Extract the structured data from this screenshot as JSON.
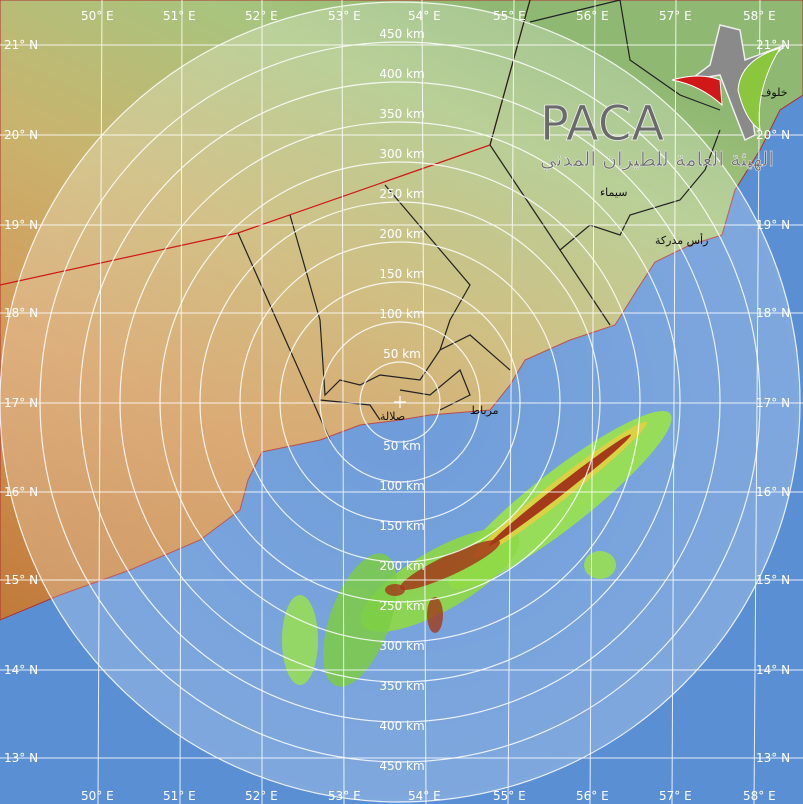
{
  "map": {
    "type": "weather radar composite",
    "radar_center": {
      "lat": 17.0,
      "lon": 54.0
    },
    "range_ring_step_km": 50,
    "range_rings_km": [
      "50 km",
      "100 km",
      "150 km",
      "200 km",
      "250 km",
      "300 km",
      "350 km",
      "400 km",
      "450 km"
    ],
    "longitude_labels": [
      "50° E",
      "51° E",
      "52° E",
      "53° E",
      "54° E",
      "55° E",
      "56° E",
      "57° E",
      "58° E"
    ],
    "latitude_labels": [
      "21° N",
      "20° N",
      "19° N",
      "18° N",
      "17° N",
      "16° N",
      "15° N",
      "14° N",
      "13° N"
    ],
    "place_labels": [
      "صلالة",
      "مرباط",
      "خلوف",
      "رأس مدركة",
      "سيماء"
    ],
    "colors": {
      "sea": "#6fa6e8",
      "land_low": "#c98a4a",
      "land_high": "#9dbb7a",
      "radar_light": "#9be34a",
      "radar_heavy": "#a33a1a",
      "border_international": "#d01818"
    }
  },
  "logo": {
    "text": "PACA",
    "arabic": "الهيئة العامة للطيران المدني"
  }
}
